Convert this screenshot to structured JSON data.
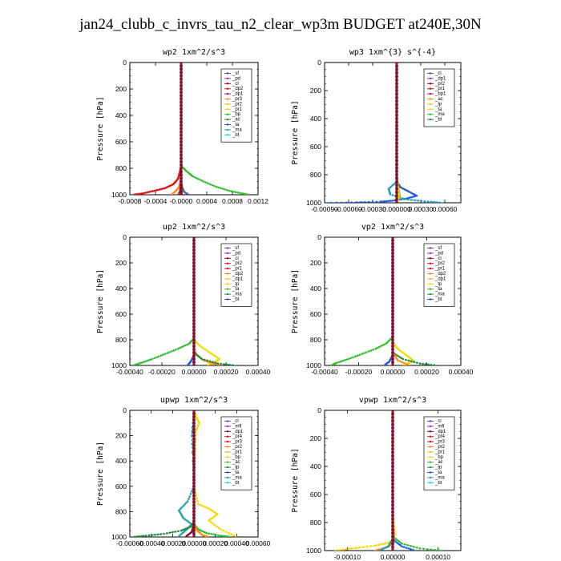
{
  "title": "jan24_clubb_c_invrs_tau_n2_clear_wp3m  BUDGET at240E,30N",
  "colors": {
    "purple": "#7a3fc8",
    "violet": "#9a2bd1",
    "darkred": "#8b0a1a",
    "red": "#e01010",
    "crimson": "#c8102e",
    "orange": "#ff8c1a",
    "gold": "#f0c419",
    "yellow": "#f5d800",
    "green": "#2fbf2f",
    "darkgreen": "#1f8f3a",
    "blue": "#1e5adf",
    "teal": "#1a9fb8",
    "cyan": "#00d5ff",
    "navy": "#1a237e",
    "slate": "#4f6d8a"
  },
  "chart_data": [
    {
      "type": "line",
      "title": "wp2   1xm^2/s^3",
      "ylabel": "Pressure [hPa]",
      "xlim": [
        -0.0008,
        0.0012
      ],
      "ylim": [
        1000,
        0
      ],
      "xticks": [
        -0.0008,
        -0.0004,
        0.0,
        0.0004,
        0.0008,
        0.0012
      ],
      "xticklabels": [
        "-0.0008",
        "-0.0004",
        "-0.0000",
        "0.0004",
        "0.0008",
        "0.0012"
      ],
      "yticks": [
        0,
        200,
        400,
        600,
        800,
        1000
      ],
      "legend": [
        "_sf",
        "_pd",
        "_cl",
        "_dp2",
        "_dp1",
        "_pr3",
        "_pr2",
        "_pr1",
        "_bp",
        "_ac",
        "_ta",
        "_ma",
        "_bt"
      ],
      "series": [
        {
          "name": "_dp1",
          "color": "#e01010",
          "x": [
            0,
            0,
            -2e-05,
            -5e-05,
            -0.00012,
            -0.00025,
            -0.00042,
            -0.0006,
            -0.00075
          ],
          "y": [
            0,
            780,
            830,
            880,
            920,
            950,
            970,
            990,
            1000
          ]
        },
        {
          "name": "_pr1",
          "color": "#ff8c1a",
          "x": [
            0,
            0,
            -1e-05,
            -3e-05,
            -8e-05,
            -0.00015
          ],
          "y": [
            0,
            850,
            900,
            940,
            970,
            1000
          ]
        },
        {
          "name": "_bp",
          "color": "#2fbf2f",
          "x": [
            0,
            0,
            8e-05,
            0.00018,
            0.00035,
            0.00055,
            0.00075,
            0.00095,
            0.00105
          ],
          "y": [
            0,
            780,
            820,
            860,
            900,
            940,
            970,
            990,
            1000
          ]
        },
        {
          "name": "_ta",
          "color": "#4f6d8a",
          "x": [
            0,
            0,
            2e-05,
            5e-05,
            0.00012
          ],
          "y": [
            0,
            900,
            950,
            980,
            1000
          ]
        },
        {
          "name": "_cl",
          "color": "#c8102e",
          "x": [
            0,
            0,
            -1e-05,
            -2e-05,
            -4e-05
          ],
          "y": [
            0,
            900,
            950,
            980,
            1000
          ]
        },
        {
          "name": "_sf",
          "color": "#7a3fc8",
          "x": [
            0,
            0,
            1e-05,
            0
          ],
          "y": [
            0,
            960,
            990,
            1000
          ]
        }
      ]
    },
    {
      "type": "line",
      "title": "wp3   1xm^{3} s^{-4}",
      "ylabel": "Pressure [hPa]",
      "xlim": [
        -0.0009,
        0.0008
      ],
      "ylim": [
        1000,
        0
      ],
      "xticks": [
        -0.0009,
        -0.0006,
        -0.0003,
        0.0,
        0.0003,
        0.0006
      ],
      "xticklabels": [
        "-0.00090",
        "-0.00060",
        "-0.00030",
        "0.000000",
        "0.00030",
        "0.00060"
      ],
      "yticks": [
        0,
        200,
        400,
        600,
        800,
        1000
      ],
      "legend": [
        "_cl",
        "_dp1",
        "_pr2",
        "_pr1",
        "_bp1",
        "_ac",
        "_tp",
        "_ta",
        "_ma",
        "_bt"
      ],
      "series": [
        {
          "name": "_ta",
          "color": "#1e5adf",
          "x": [
            0,
            0,
            5e-05,
            0.00015,
            0.00025,
            0.00012,
            -5e-05,
            -0.0002,
            -0.0005,
            -0.00088
          ],
          "y": [
            0,
            850,
            890,
            920,
            950,
            970,
            985,
            992,
            997,
            1000
          ]
        },
        {
          "name": "_ma",
          "color": "#1a9fb8",
          "x": [
            0,
            0,
            -0.0001,
            -8e-05,
            0.0001,
            0.00035,
            0.00058
          ],
          "y": [
            0,
            850,
            900,
            940,
            975,
            990,
            1000
          ]
        },
        {
          "name": "_ac",
          "color": "#2fbf2f",
          "x": [
            0,
            0,
            2e-05,
            4e-05,
            -2e-05
          ],
          "y": [
            0,
            800,
            880,
            960,
            1000
          ]
        },
        {
          "name": "_pr1",
          "color": "#f5d800",
          "x": [
            0,
            0,
            2e-05,
            3e-05,
            0
          ],
          "y": [
            0,
            820,
            900,
            960,
            1000
          ]
        },
        {
          "name": "_dp1",
          "color": "#e01010",
          "x": [
            0,
            0,
            0,
            0
          ],
          "y": [
            0,
            500,
            900,
            1000
          ]
        }
      ]
    },
    {
      "type": "line",
      "title": "up2   1xm^2/s^3",
      "ylabel": "Pressure [hPa]",
      "xlim": [
        -0.0004,
        0.0004
      ],
      "ylim": [
        1000,
        0
      ],
      "xticks": [
        -0.0004,
        -0.0002,
        0.0,
        0.0002,
        0.0004
      ],
      "xticklabels": [
        "-0.00040",
        "-0.00020",
        "0.00000",
        "0.00020",
        "0.00040"
      ],
      "yticks": [
        0,
        200,
        400,
        600,
        800,
        1000
      ],
      "legend": [
        "_sf",
        "_pd",
        "_cl",
        "_pr2",
        "_pr1",
        "_dp2",
        "_dp1",
        "_tp",
        "_ta",
        "_ma",
        "_bt"
      ],
      "series": [
        {
          "name": "_dp1",
          "color": "#2fbf2f",
          "x": [
            0,
            0,
            -3e-05,
            -0.0001,
            -0.00018,
            -0.00026,
            -0.00033,
            -0.00038
          ],
          "y": [
            0,
            790,
            830,
            870,
            910,
            950,
            980,
            1000
          ]
        },
        {
          "name": "_pr1",
          "color": "#f5d800",
          "x": [
            0,
            0,
            4e-05,
            0.0001,
            0.00016,
            0.00012,
            8e-05
          ],
          "y": [
            0,
            800,
            850,
            900,
            950,
            980,
            1000
          ]
        },
        {
          "name": "_pr2",
          "color": "#ff8c1a",
          "x": [
            0,
            0,
            2e-05,
            6e-05,
            0.00012,
            0.00018
          ],
          "y": [
            0,
            880,
            920,
            960,
            985,
            1000
          ]
        },
        {
          "name": "_dp2",
          "color": "#1f8f3a",
          "x": [
            0,
            0,
            5e-05,
            0.00015,
            0.00026
          ],
          "y": [
            0,
            900,
            950,
            985,
            1000
          ]
        },
        {
          "name": "_tp",
          "color": "#1e5adf",
          "x": [
            0,
            0,
            -2e-05,
            -4e-05
          ],
          "y": [
            0,
            920,
            970,
            1000
          ]
        },
        {
          "name": "_sf",
          "color": "#c8102e",
          "x": [
            0,
            0,
            0
          ],
          "y": [
            0,
            500,
            1000
          ]
        }
      ]
    },
    {
      "type": "line",
      "title": "vp2   1xm^2/s^3",
      "ylabel": "Pressure [hPa]",
      "xlim": [
        -0.0004,
        0.0004
      ],
      "ylim": [
        1000,
        0
      ],
      "xticks": [
        -0.0004,
        -0.0002,
        0.0,
        0.0002,
        0.0004
      ],
      "xticklabels": [
        "-0.00040",
        "-0.00020",
        "0.00000",
        "0.00020",
        "0.00040"
      ],
      "yticks": [
        0,
        200,
        400,
        600,
        800,
        1000
      ],
      "legend": [
        "_sf",
        "_pd",
        "_cl",
        "_pr2",
        "_pr1",
        "_dp2",
        "_dp1",
        "_tp",
        "_ta",
        "_ma",
        "_bt"
      ],
      "series": [
        {
          "name": "_dp1",
          "color": "#2fbf2f",
          "x": [
            0,
            0,
            -4e-05,
            -0.0001,
            -0.00018,
            -0.00026,
            -0.00033,
            -0.00036
          ],
          "y": [
            0,
            780,
            830,
            870,
            910,
            950,
            980,
            1000
          ]
        },
        {
          "name": "_pr1",
          "color": "#f5d800",
          "x": [
            0,
            0,
            3e-05,
            8e-05,
            0.00012,
            9e-05,
            6e-05
          ],
          "y": [
            0,
            820,
            870,
            920,
            960,
            985,
            1000
          ]
        },
        {
          "name": "_dp2",
          "color": "#1f8f3a",
          "x": [
            0,
            0,
            6e-05,
            0.00016,
            0.00026
          ],
          "y": [
            0,
            900,
            950,
            985,
            1000
          ]
        },
        {
          "name": "_pr2",
          "color": "#ff8c1a",
          "x": [
            0,
            0,
            3e-05,
            0.0001
          ],
          "y": [
            0,
            900,
            960,
            1000
          ]
        },
        {
          "name": "_tp",
          "color": "#1e5adf",
          "x": [
            0,
            0,
            -2e-05,
            -5e-05
          ],
          "y": [
            0,
            920,
            970,
            1000
          ]
        },
        {
          "name": "_sf",
          "color": "#c8102e",
          "x": [
            0,
            0,
            0
          ],
          "y": [
            0,
            500,
            1000
          ]
        }
      ]
    },
    {
      "type": "line",
      "title": "upwp   1xm^2/s^3",
      "ylabel": "Pressure [hPa]",
      "xlim": [
        -0.0006,
        0.0006
      ],
      "ylim": [
        1000,
        0
      ],
      "xticks": [
        -0.0006,
        -0.0004,
        -0.0002,
        0.0,
        0.0002,
        0.0004,
        0.0006
      ],
      "xticklabels": [
        "-0.00060",
        "-0.00040",
        "-0.00020",
        "0.00000",
        "0.00020",
        "0.00040",
        "0.00060"
      ],
      "yticks": [
        0,
        200,
        400,
        600,
        800,
        1000
      ],
      "legend": [
        "_cl",
        "_mfl",
        "_dp1",
        "_pr4",
        "_pr3",
        "_pr2",
        "_pr1",
        "_bp",
        "_ac",
        "_tp",
        "_ta",
        "_ma",
        "_bt"
      ],
      "series": [
        {
          "name": "_pr1",
          "color": "#f5d800",
          "x": [
            0,
            2e-05,
            5e-05,
            2e-05,
            0,
            4e-05,
            0.00015,
            0.00022,
            0.00014,
            0.00025,
            0.0004
          ],
          "y": [
            0,
            50,
            100,
            160,
            600,
            740,
            780,
            820,
            870,
            940,
            1000
          ]
        },
        {
          "name": "_tp",
          "color": "#1a9fb8",
          "x": [
            0,
            -2e-05,
            0,
            -6e-05,
            -0.00014,
            -0.0001,
            -2e-05,
            -8e-05,
            -0.00015
          ],
          "y": [
            0,
            200,
            600,
            720,
            790,
            850,
            900,
            950,
            1000
          ]
        },
        {
          "name": "_bp",
          "color": "#1f8f3a",
          "x": [
            0,
            0,
            -3e-05,
            -0.00012,
            -0.00028,
            -0.00045,
            -0.00058
          ],
          "y": [
            0,
            880,
            920,
            950,
            975,
            990,
            1000
          ]
        },
        {
          "name": "_ac",
          "color": "#2fbf2f",
          "x": [
            0,
            0,
            4e-05,
            0.00012,
            0.00025,
            0.00035
          ],
          "y": [
            0,
            900,
            940,
            970,
            990,
            1000
          ]
        },
        {
          "name": "_pr2",
          "color": "#ff8c1a",
          "x": [
            0,
            0,
            3e-05,
            8e-05,
            0.00014
          ],
          "y": [
            0,
            900,
            950,
            985,
            1000
          ]
        },
        {
          "name": "_dp1",
          "color": "#8b0a1a",
          "x": [
            0,
            0,
            -2e-05,
            -8e-05
          ],
          "y": [
            0,
            900,
            960,
            1000
          ]
        },
        {
          "name": "_cl",
          "color": "#7a3fc8",
          "x": [
            0,
            0,
            0
          ],
          "y": [
            0,
            500,
            1000
          ]
        }
      ]
    },
    {
      "type": "line",
      "title": "vpwp   1xm^2/s^3",
      "ylabel": "Pressure [hPa]",
      "xlim": [
        -0.00015,
        0.00015
      ],
      "ylim": [
        1000,
        0
      ],
      "xticks": [
        -0.0001,
        0.0,
        0.0001
      ],
      "xticklabels": [
        "-0.00010",
        "0.00000",
        "0.00010"
      ],
      "yticks": [
        0,
        200,
        400,
        600,
        800,
        1000
      ],
      "legend": [
        "_cl",
        "_mfl",
        "_dp1",
        "_pr4",
        "_pr3",
        "_pr2",
        "_pr1",
        "_bp",
        "_ac",
        "_tp",
        "_ta",
        "_ma",
        "_bt"
      ],
      "series": [
        {
          "name": "_pr1",
          "color": "#f5d800",
          "x": [
            0,
            0,
            2e-06,
            4e-06,
            2e-06,
            -1e-05,
            -4e-05,
            -9e-05,
            -0.00013
          ],
          "y": [
            0,
            750,
            800,
            880,
            920,
            945,
            965,
            985,
            1000
          ]
        },
        {
          "name": "_pr2",
          "color": "#ff8c1a",
          "x": [
            0,
            0,
            3e-06,
            2e-06,
            -1e-05,
            -4e-05
          ],
          "y": [
            0,
            820,
            880,
            940,
            975,
            1000
          ]
        },
        {
          "name": "_ac",
          "color": "#2fbf2f",
          "x": [
            0,
            0,
            2e-05,
            6e-05,
            0.00011
          ],
          "y": [
            0,
            900,
            950,
            985,
            1000
          ]
        },
        {
          "name": "_ta",
          "color": "#1e5adf",
          "x": [
            0,
            0,
            2e-05,
            5e-05
          ],
          "y": [
            0,
            920,
            970,
            1000
          ]
        },
        {
          "name": "_tp",
          "color": "#1a9fb8",
          "x": [
            0,
            0,
            -1e-05,
            -3e-05
          ],
          "y": [
            0,
            920,
            970,
            1000
          ]
        },
        {
          "name": "_dp1",
          "color": "#8b0a1a",
          "x": [
            0,
            0,
            0
          ],
          "y": [
            0,
            500,
            1000
          ]
        },
        {
          "name": "_cl",
          "color": "#7a3fc8",
          "x": [
            0,
            0,
            0
          ],
          "y": [
            0,
            300,
            1000
          ]
        }
      ]
    }
  ]
}
